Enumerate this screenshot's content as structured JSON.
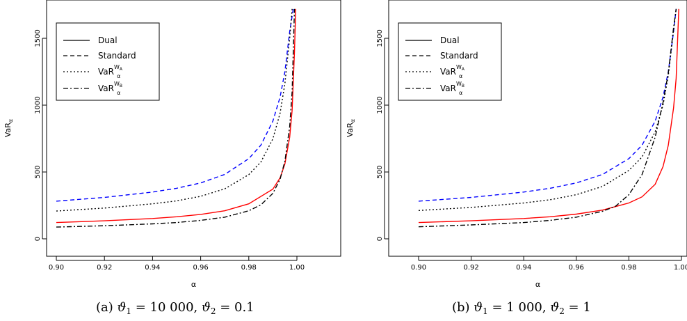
{
  "chart_data": [
    {
      "type": "line",
      "caption": {
        "tag": "(a)",
        "theta1_symbol": "ϑ",
        "theta1_sub": "1",
        "theta1_value": "= 10 000,",
        "theta2_symbol": "ϑ",
        "theta2_sub": "2",
        "theta2_value": "= 0.1"
      },
      "xlabel": "α",
      "ylabel": {
        "base": "VaR",
        "sub": "α"
      },
      "xlim": [
        0.9,
        1.0
      ],
      "ylim": [
        0,
        1700
      ],
      "x_ticks": [
        "0.90",
        "0.92",
        "0.94",
        "0.96",
        "0.98",
        "1.00"
      ],
      "y_ticks": [
        "0",
        "500",
        "1000",
        "1500"
      ],
      "legend": {
        "position": "top-left",
        "entries": [
          {
            "label": "Dual"
          },
          {
            "label": "Standard"
          },
          {
            "label": "VaR",
            "sup": "W",
            "supsub": "A",
            "sub": "α"
          },
          {
            "label": "VaR",
            "sup": "W",
            "supsub": "B",
            "sub": "α"
          }
        ]
      },
      "series": [
        {
          "key": "dual",
          "color": "#ff0000",
          "dash": "solid",
          "x": [
            0.9,
            0.92,
            0.94,
            0.95,
            0.96,
            0.97,
            0.98,
            0.99,
            0.993,
            0.995,
            0.997,
            0.998,
            0.999,
            0.9995
          ],
          "y": [
            122,
            135,
            152,
            165,
            183,
            210,
            262,
            372,
            456,
            560,
            760,
            960,
            1400,
            1720
          ]
        },
        {
          "key": "standard",
          "color": "#0000ff",
          "dash": "6,4",
          "x": [
            0.9,
            0.92,
            0.94,
            0.95,
            0.96,
            0.97,
            0.98,
            0.985,
            0.99,
            0.993,
            0.995,
            0.997,
            0.9985
          ],
          "y": [
            282,
            310,
            350,
            378,
            418,
            482,
            600,
            700,
            880,
            1060,
            1250,
            1550,
            1720
          ]
        },
        {
          "key": "vara",
          "color": "#000000",
          "dash": "2,3",
          "x": [
            0.9,
            0.92,
            0.94,
            0.95,
            0.96,
            0.97,
            0.98,
            0.985,
            0.99,
            0.993,
            0.995,
            0.997,
            0.998
          ],
          "y": [
            208,
            230,
            262,
            284,
            318,
            374,
            480,
            574,
            748,
            940,
            1160,
            1500,
            1720
          ]
        },
        {
          "key": "varb",
          "color": "#000000",
          "dash": "7,3,2,3",
          "x": [
            0.9,
            0.92,
            0.94,
            0.95,
            0.96,
            0.97,
            0.98,
            0.985,
            0.99,
            0.993,
            0.995,
            0.997,
            0.998,
            0.999
          ],
          "y": [
            88,
            98,
            112,
            122,
            138,
            162,
            210,
            254,
            340,
            446,
            580,
            840,
            1100,
            1720
          ]
        }
      ]
    },
    {
      "type": "line",
      "caption": {
        "tag": "(b)",
        "theta1_symbol": "ϑ",
        "theta1_sub": "1",
        "theta1_value": "= 1 000,",
        "theta2_symbol": "ϑ",
        "theta2_sub": "2",
        "theta2_value": "= 1"
      },
      "xlabel": "α",
      "ylabel": {
        "base": "VaR",
        "sub": "α"
      },
      "xlim": [
        0.9,
        1.0
      ],
      "ylim": [
        0,
        1700
      ],
      "x_ticks": [
        "0.90",
        "0.92",
        "0.94",
        "0.96",
        "0.98",
        "1.00"
      ],
      "y_ticks": [
        "0",
        "500",
        "1000",
        "1500"
      ],
      "legend": {
        "position": "top-left",
        "entries": [
          {
            "label": "Dual"
          },
          {
            "label": "Standard"
          },
          {
            "label": "VaR",
            "sup": "W",
            "supsub": "A",
            "sub": "α"
          },
          {
            "label": "VaR",
            "sup": "W",
            "supsub": "B",
            "sub": "α"
          }
        ]
      },
      "series": [
        {
          "key": "dual",
          "color": "#ff0000",
          "dash": "solid",
          "x": [
            0.9,
            0.92,
            0.94,
            0.95,
            0.96,
            0.97,
            0.98,
            0.985,
            0.99,
            0.993,
            0.995,
            0.997,
            0.998,
            0.999
          ],
          "y": [
            122,
            135,
            152,
            165,
            185,
            215,
            268,
            314,
            408,
            540,
            700,
            980,
            1200,
            1720
          ]
        },
        {
          "key": "standard",
          "color": "#0000ff",
          "dash": "6,4",
          "x": [
            0.9,
            0.92,
            0.94,
            0.95,
            0.96,
            0.97,
            0.98,
            0.985,
            0.99,
            0.993,
            0.995,
            0.997,
            0.998
          ],
          "y": [
            282,
            310,
            350,
            378,
            418,
            482,
            600,
            700,
            880,
            1060,
            1250,
            1550,
            1720
          ]
        },
        {
          "key": "vara",
          "color": "#000000",
          "dash": "2,3",
          "x": [
            0.9,
            0.92,
            0.94,
            0.95,
            0.96,
            0.97,
            0.98,
            0.985,
            0.99,
            0.993,
            0.995,
            0.997,
            0.998
          ],
          "y": [
            212,
            235,
            268,
            292,
            330,
            392,
            512,
            612,
            800,
            1000,
            1220,
            1560,
            1720
          ]
        },
        {
          "key": "varb",
          "color": "#000000",
          "dash": "7,3,2,3",
          "x": [
            0.9,
            0.92,
            0.94,
            0.95,
            0.96,
            0.97,
            0.975,
            0.98,
            0.985,
            0.99,
            0.993,
            0.995,
            0.997,
            0.998
          ],
          "y": [
            90,
            104,
            122,
            138,
            162,
            206,
            245,
            330,
            480,
            760,
            1020,
            1240,
            1580,
            1720
          ]
        }
      ]
    }
  ]
}
